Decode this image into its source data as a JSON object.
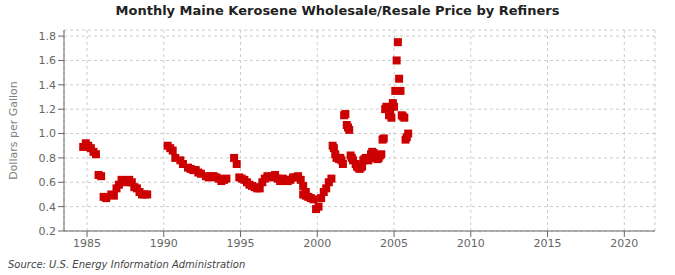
{
  "chart_data": {
    "type": "scatter",
    "title": "Monthly Maine Kerosene Wholesale/Resale Price by Refiners",
    "ylabel": "Dollars per Gallon",
    "annotations": [
      "Source: U.S. Energy Information Administration"
    ],
    "color": "#cc0000",
    "marker": "square",
    "grid": true,
    "xlim": [
      1983.5,
      2022
    ],
    "ylim": [
      0.2,
      1.85
    ],
    "xticks": [
      1985,
      1990,
      1995,
      2000,
      2005,
      2010,
      2015,
      2020
    ],
    "yticks": [
      0.2,
      0.4,
      0.6,
      0.8,
      {
        "value": 1.0,
        "label": "1.0"
      },
      1.2,
      1.4,
      1.6,
      1.8
    ],
    "x": [
      1984.75,
      1984.92,
      1985.08,
      1985.25,
      1985.42,
      1985.58,
      1985.75,
      1985.92,
      1986.08,
      1986.25,
      1986.58,
      1986.75,
      1986.92,
      1987.08,
      1987.25,
      1987.42,
      1987.58,
      1987.75,
      1987.92,
      1988.08,
      1988.25,
      1988.42,
      1988.58,
      1988.75,
      1988.92,
      1990.25,
      1990.42,
      1990.58,
      1990.75,
      1991.08,
      1991.25,
      1991.58,
      1991.75,
      1991.92,
      1992.08,
      1992.25,
      1992.42,
      1992.75,
      1992.92,
      1993.08,
      1993.25,
      1993.42,
      1993.58,
      1993.75,
      1993.92,
      1994.08,
      1994.58,
      1994.75,
      1994.92,
      1995.08,
      1995.25,
      1995.42,
      1995.58,
      1995.75,
      1995.92,
      1996.08,
      1996.25,
      1996.42,
      1996.58,
      1996.75,
      1996.92,
      1997.08,
      1997.25,
      1997.42,
      1997.58,
      1997.75,
      1997.92,
      1998.08,
      1998.25,
      1998.42,
      1998.58,
      1998.75,
      1998.92,
      1999.08,
      1999.25,
      1999.08,
      1999.25,
      1999.42,
      1999.58,
      1999.75,
      1999.92,
      2000.08,
      2000.25,
      2000.42,
      2000.58,
      2000.75,
      2000.92,
      2001.0,
      2001.08,
      2001.17,
      2001.25,
      2001.33,
      2001.42,
      2001.5,
      2001.58,
      2001.67,
      2001.75,
      2001.83,
      2001.92,
      2002.0,
      2002.08,
      2002.17,
      2002.25,
      2002.33,
      2002.5,
      2002.58,
      2002.67,
      2002.75,
      2002.83,
      2002.92,
      2003.0,
      2003.08,
      2003.17,
      2003.25,
      2003.33,
      2003.42,
      2003.5,
      2003.58,
      2003.67,
      2003.75,
      2003.83,
      2003.92,
      2004.0,
      2004.08,
      2004.17,
      2004.25,
      2004.33,
      2004.42,
      2004.5,
      2004.58,
      2004.67,
      2004.75,
      2004.83,
      2004.92,
      2005.0,
      2005.08,
      2005.17,
      2005.25,
      2005.33,
      2005.42,
      2005.5,
      2005.58,
      2005.67,
      2005.75,
      2005.83,
      2005.92
    ],
    "values": [
      0.89,
      0.92,
      0.9,
      0.88,
      0.85,
      0.83,
      0.66,
      0.65,
      0.48,
      0.47,
      0.5,
      0.49,
      0.55,
      0.58,
      0.62,
      0.61,
      0.6,
      0.62,
      0.6,
      0.56,
      0.55,
      0.52,
      0.5,
      0.5,
      0.5,
      0.9,
      0.88,
      0.86,
      0.8,
      0.78,
      0.75,
      0.72,
      0.71,
      0.7,
      0.7,
      0.68,
      0.67,
      0.65,
      0.64,
      0.65,
      0.65,
      0.64,
      0.63,
      0.61,
      0.62,
      0.63,
      0.8,
      0.75,
      0.64,
      0.63,
      0.62,
      0.6,
      0.58,
      0.57,
      0.56,
      0.55,
      0.55,
      0.6,
      0.63,
      0.65,
      0.64,
      0.65,
      0.66,
      0.63,
      0.61,
      0.63,
      0.62,
      0.61,
      0.62,
      0.64,
      0.64,
      0.65,
      0.62,
      0.57,
      0.52,
      0.5,
      0.49,
      0.48,
      0.47,
      0.46,
      0.38,
      0.4,
      0.47,
      0.52,
      0.55,
      0.6,
      0.63,
      0.9,
      0.88,
      0.83,
      0.8,
      0.8,
      0.79,
      0.8,
      0.78,
      0.75,
      1.15,
      1.16,
      1.07,
      1.05,
      1.03,
      0.82,
      0.8,
      0.78,
      0.75,
      0.73,
      0.72,
      0.71,
      0.72,
      0.73,
      0.78,
      0.79,
      0.8,
      0.79,
      0.78,
      0.8,
      0.83,
      0.85,
      0.84,
      0.82,
      0.8,
      0.79,
      0.8,
      0.82,
      0.83,
      0.95,
      0.96,
      1.2,
      1.22,
      1.21,
      1.15,
      1.16,
      1.13,
      1.25,
      1.22,
      1.35,
      1.6,
      1.75,
      1.45,
      1.35,
      1.15,
      1.14,
      1.13,
      0.95,
      0.97,
      1.0
    ]
  }
}
